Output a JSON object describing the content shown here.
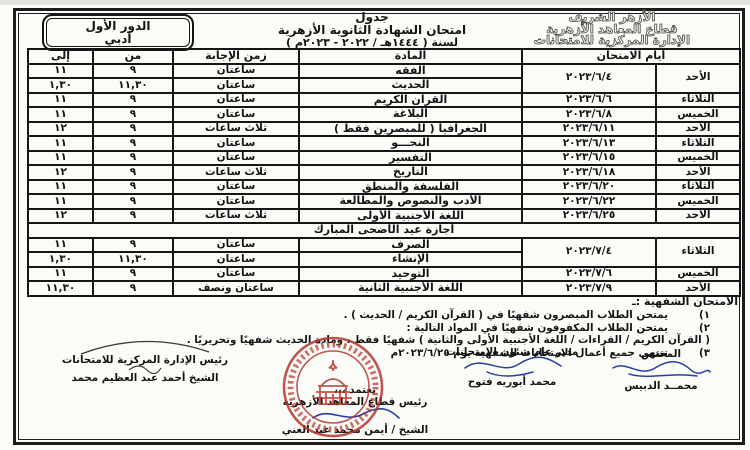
{
  "colors": {
    "ink": "#141414",
    "stamp_red": "#b23229",
    "signature_blue": "#26419b",
    "paper": "#fbfbf8"
  },
  "org_header": {
    "lines": [
      "الأزهر الشريف",
      "قطاع المعاهد الأزهرية",
      "الإدارة المركزية للامتحانات"
    ]
  },
  "title": {
    "line1": "جدول",
    "line2": "امتحان الشهادة الثانوية الأزهرية",
    "line3": "لسنة ( ١٤٤٤هـ / ٢٠٢٢ - ٢٠٢٣م )"
  },
  "badge": {
    "round": "الدور الأول",
    "track": "أدبي"
  },
  "table": {
    "headers": {
      "days": "أيام الامتحان",
      "subject": "المادة",
      "duration": "زمن الإجابة",
      "from": "من",
      "to": "إلى"
    },
    "rows": [
      {
        "day": "الأحد",
        "date": "٢٠٢٣/٦/٤",
        "rowspan": 2,
        "subject": "الفقه",
        "duration": "ساعتان",
        "from": "٩",
        "to": "١١"
      },
      {
        "subject": "الحديث",
        "duration": "ساعتان",
        "from": "١١,٣٠",
        "to": "١,٣٠"
      },
      {
        "day": "الثلاثاء",
        "date": "٢٠٢٣/٦/٦",
        "subject": "القرآن الكريم",
        "duration": "ساعتان",
        "from": "٩",
        "to": "١١"
      },
      {
        "day": "الخميس",
        "date": "٢٠٢٣/٦/٨",
        "subject": "البلاغة",
        "duration": "ساعتان",
        "from": "٩",
        "to": "١١"
      },
      {
        "day": "الأحد",
        "date": "٢٠٢٣/٦/١١",
        "subject": "الجغرافيا ( للمبصرين فقط )",
        "duration": "ثلاث ساعات",
        "from": "٩",
        "to": "١٢"
      },
      {
        "day": "الثلاثاء",
        "date": "٢٠٢٣/٦/١٣",
        "subject": "النحـــو",
        "duration": "ساعتان",
        "from": "٩",
        "to": "١١"
      },
      {
        "day": "الخميس",
        "date": "٢٠٢٣/٦/١٥",
        "subject": "التفسير",
        "duration": "ساعتان",
        "from": "٩",
        "to": "١١"
      },
      {
        "day": "الأحد",
        "date": "٢٠٢٣/٦/١٨",
        "subject": "التاريخ",
        "duration": "ثلاث ساعات",
        "from": "٩",
        "to": "١٢"
      },
      {
        "day": "الثلاثاء",
        "date": "٢٠٢٣/٦/٢٠",
        "subject": "الفلسفة والمنطق",
        "duration": "ساعتان",
        "from": "٩",
        "to": "١١"
      },
      {
        "day": "الخميس",
        "date": "٢٠٢٣/٦/٢٢",
        "subject": "الأدب والنصوص والمطالعة",
        "duration": "ساعتان",
        "from": "٩",
        "to": "١١"
      },
      {
        "day": "الأحد",
        "date": "٢٠٢٣/٦/٢٥",
        "subject": "اللغة الأجنبية الأولى",
        "duration": "ثلاث ساعات",
        "from": "٩",
        "to": "١٢"
      },
      {
        "holiday": "أجازة عيد الأضحى المبارك"
      },
      {
        "day": "الثلاثاء",
        "date": "٢٠٢٣/٧/٤",
        "rowspan": 2,
        "subject": "الصرف",
        "duration": "ساعتان",
        "from": "٩",
        "to": "١١"
      },
      {
        "subject": "الإنشاء",
        "duration": "ساعتان",
        "from": "١١,٣٠",
        "to": "١,٣٠"
      },
      {
        "day": "الخميس",
        "date": "٢٠٢٣/٧/٦",
        "subject": "التوحيد",
        "duration": "ساعتان",
        "from": "٩",
        "to": "١١"
      },
      {
        "day": "الأحد",
        "date": "٢٠٢٣/٧/٩",
        "subject": "اللغة الأجنبية الثانية",
        "duration": "ساعتان ونصف",
        "from": "٩",
        "to": "١١,٣٠"
      }
    ]
  },
  "notes": {
    "heading": "الامتحان الشفهية :ـ",
    "items": [
      {
        "marker": "١)",
        "text": "يمتحن الطلاب المبصرون شفهيًا في ( القرآن الكريم / الحديث ) .",
        "cont": false
      },
      {
        "marker": "٢)",
        "text": "يمتحن الطلاب المكفوفون شفهيًا في المواد التالية :",
        "cont": false
      },
      {
        "marker": "",
        "text": "( القرآن الكريم / القراءات / اللغة الأجنبية الأولى والثانية ) شفهيًا فقط ، ومادة الحديث شفهيًا وتحريريًا .",
        "cont": true
      },
      {
        "marker": "٣)",
        "text": "تنتهي جميع أعمال الامتحانات الشفهية يوم ٢٠٢٣/٦/٢٥م",
        "cont": false
      }
    ]
  },
  "signatures": {
    "specialist": {
      "title": "المختص",
      "name": "محمــد الدبيس"
    },
    "director": {
      "title": "مدير عام شئون الامتحانات",
      "name": "محمد أبوريه فتوح"
    },
    "approval": {
      "word": "يعتمد ،،،",
      "title": "رئيس قطاع المعاهد الأزهرية",
      "name": "الشيخ / أيمن محمد عبد الغني"
    },
    "chairman": {
      "title": "رئيس الإدارة المركزية للامتحانات",
      "name": "الشيخ أحمد عبد العظيم محمد"
    }
  }
}
